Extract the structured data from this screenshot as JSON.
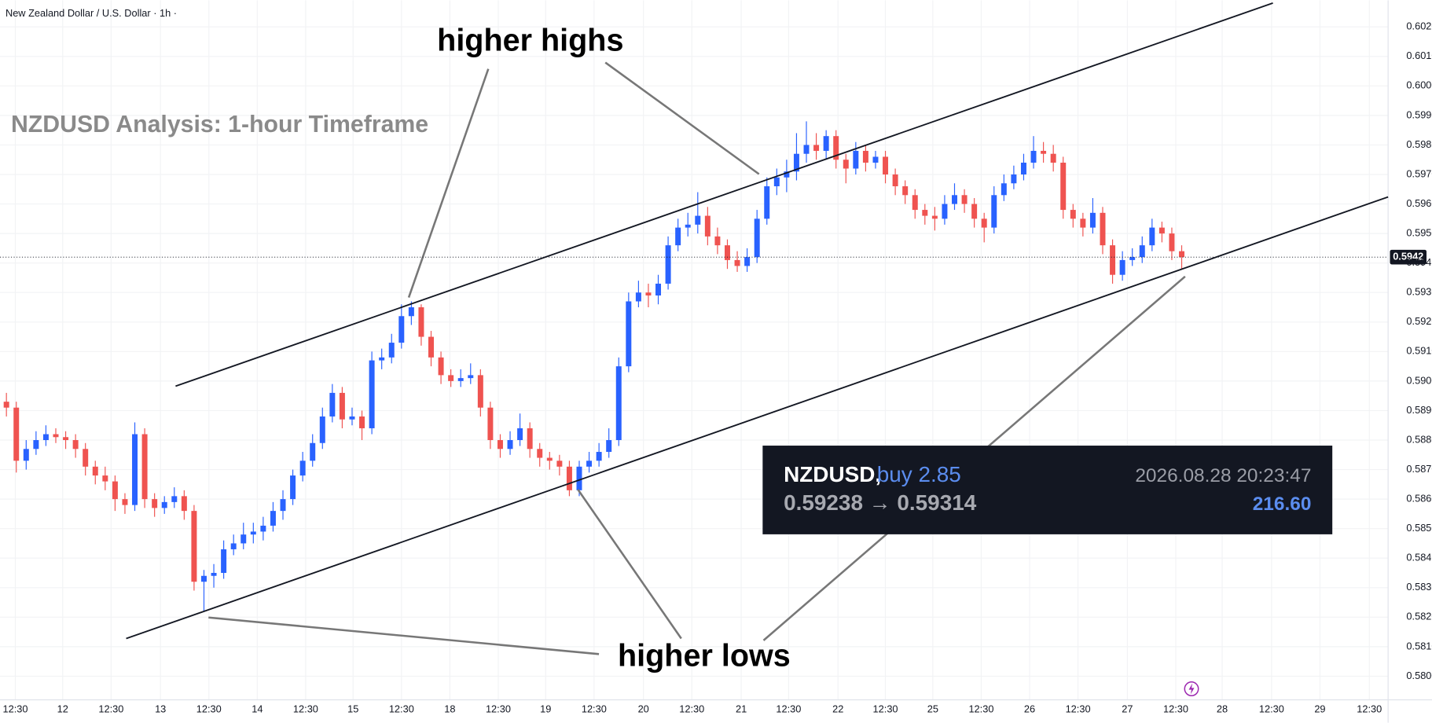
{
  "chart_data": {
    "type": "candlestick",
    "header": "New Zealand Dollar / U.S. Dollar · 1h ·",
    "title": "NZDUSD Analysis: 1-hour Timeframe",
    "annotations": {
      "highs": "higher highs",
      "lows": "higher lows"
    },
    "trade": {
      "symbol": "NZDUSD,",
      "side": "buy 2.85",
      "time": "2026.08.28 20:23:47",
      "prices": "0.59238 → 0.59314",
      "profit": "216.60"
    },
    "up_color": "#2962ff",
    "down_color": "#ef5350",
    "last_price": {
      "value": 0.5942,
      "label": "0.5942"
    },
    "grid": true,
    "xlim": [
      -0.65,
      139.9
    ],
    "ylim": [
      0.5792,
      0.6029
    ],
    "xticks": [
      {
        "value": 0.9,
        "label": "12:30"
      },
      {
        "value": 5.7,
        "label": "12"
      },
      {
        "value": 10.6,
        "label": "12:30"
      },
      {
        "value": 15.6,
        "label": "13"
      },
      {
        "value": 20.5,
        "label": "12:30"
      },
      {
        "value": 25.4,
        "label": "14"
      },
      {
        "value": 30.3,
        "label": "12:30"
      },
      {
        "value": 35.1,
        "label": "15"
      },
      {
        "value": 40,
        "label": "12:30"
      },
      {
        "value": 44.9,
        "label": "18"
      },
      {
        "value": 49.8,
        "label": "12:30"
      },
      {
        "value": 54.6,
        "label": "19"
      },
      {
        "value": 59.5,
        "label": "12:30"
      },
      {
        "value": 64.5,
        "label": "20"
      },
      {
        "value": 69.4,
        "label": "12:30"
      },
      {
        "value": 74.4,
        "label": "21"
      },
      {
        "value": 79.2,
        "label": "12:30"
      },
      {
        "value": 84.2,
        "label": "22"
      },
      {
        "value": 89,
        "label": "12:30"
      },
      {
        "value": 93.8,
        "label": "25"
      },
      {
        "value": 98.7,
        "label": "12:30"
      },
      {
        "value": 103.6,
        "label": "26"
      },
      {
        "value": 108.5,
        "label": "12:30"
      },
      {
        "value": 113.5,
        "label": "27"
      },
      {
        "value": 118.4,
        "label": "12:30"
      },
      {
        "value": 123.1,
        "label": "28"
      },
      {
        "value": 128.1,
        "label": "12:30"
      },
      {
        "value": 133,
        "label": "29"
      },
      {
        "value": 138,
        "label": "12:30"
      }
    ],
    "yticks": [
      {
        "value": 0.58,
        "label": "0.5800"
      },
      {
        "value": 0.581,
        "label": "0.5810"
      },
      {
        "value": 0.582,
        "label": "0.5820"
      },
      {
        "value": 0.583,
        "label": "0.5830"
      },
      {
        "value": 0.584,
        "label": "0.5840"
      },
      {
        "value": 0.585,
        "label": "0.5850"
      },
      {
        "value": 0.586,
        "label": "0.5860"
      },
      {
        "value": 0.587,
        "label": "0.5870"
      },
      {
        "value": 0.588,
        "label": "0.5880"
      },
      {
        "value": 0.589,
        "label": "0.5890"
      },
      {
        "value": 0.59,
        "label": "0.5900"
      },
      {
        "value": 0.591,
        "label": "0.5910"
      },
      {
        "value": 0.592,
        "label": "0.5920"
      },
      {
        "value": 0.593,
        "label": "0.5930"
      },
      {
        "value": 0.594,
        "label": "0.5940"
      },
      {
        "value": 0.595,
        "label": "0.5950"
      },
      {
        "value": 0.596,
        "label": "0.5960"
      },
      {
        "value": 0.597,
        "label": "0.5970"
      },
      {
        "value": 0.598,
        "label": "0.5980"
      },
      {
        "value": 0.599,
        "label": "0.5990"
      },
      {
        "value": 0.6,
        "label": "0.6000"
      },
      {
        "value": 0.601,
        "label": "0.6010"
      },
      {
        "value": 0.602,
        "label": "0.6020"
      }
    ],
    "candles": [
      [
        0.5893,
        0.5896,
        0.5888,
        0.5891
      ],
      [
        0.5891,
        0.5893,
        0.5869,
        0.5873
      ],
      [
        0.5873,
        0.588,
        0.587,
        0.5877
      ],
      [
        0.5877,
        0.5883,
        0.5875,
        0.588
      ],
      [
        0.588,
        0.5885,
        0.5878,
        0.5882
      ],
      [
        0.5882,
        0.5884,
        0.5879,
        0.5881
      ],
      [
        0.5881,
        0.5883,
        0.5877,
        0.588
      ],
      [
        0.588,
        0.5882,
        0.5874,
        0.5877
      ],
      [
        0.5877,
        0.5879,
        0.5868,
        0.5871
      ],
      [
        0.5871,
        0.5873,
        0.5865,
        0.5868
      ],
      [
        0.5868,
        0.5871,
        0.5863,
        0.5866
      ],
      [
        0.5866,
        0.5868,
        0.5856,
        0.586
      ],
      [
        0.586,
        0.5862,
        0.5855,
        0.5858
      ],
      [
        0.5858,
        0.5886,
        0.5856,
        0.5882
      ],
      [
        0.5882,
        0.5884,
        0.5857,
        0.586
      ],
      [
        0.586,
        0.5862,
        0.5854,
        0.5857
      ],
      [
        0.5857,
        0.5861,
        0.5855,
        0.5859
      ],
      [
        0.5859,
        0.5864,
        0.5857,
        0.5861
      ],
      [
        0.5861,
        0.5863,
        0.5853,
        0.5856
      ],
      [
        0.5856,
        0.5858,
        0.5829,
        0.5832
      ],
      [
        0.5832,
        0.5836,
        0.5822,
        0.5834
      ],
      [
        0.5834,
        0.5838,
        0.583,
        0.5835
      ],
      [
        0.5835,
        0.5846,
        0.5833,
        0.5843
      ],
      [
        0.5843,
        0.5848,
        0.5841,
        0.5845
      ],
      [
        0.5845,
        0.5852,
        0.5843,
        0.5848
      ],
      [
        0.5848,
        0.5852,
        0.5845,
        0.5849
      ],
      [
        0.5849,
        0.5854,
        0.5846,
        0.5851
      ],
      [
        0.5851,
        0.5859,
        0.5849,
        0.5856
      ],
      [
        0.5856,
        0.5863,
        0.5853,
        0.586
      ],
      [
        0.586,
        0.587,
        0.5858,
        0.5868
      ],
      [
        0.5868,
        0.5876,
        0.5866,
        0.5873
      ],
      [
        0.5873,
        0.5882,
        0.5871,
        0.5879
      ],
      [
        0.5879,
        0.5891,
        0.5877,
        0.5888
      ],
      [
        0.5888,
        0.5899,
        0.5886,
        0.5896
      ],
      [
        0.5896,
        0.5898,
        0.5884,
        0.5887
      ],
      [
        0.5887,
        0.5891,
        0.5885,
        0.5888
      ],
      [
        0.5888,
        0.589,
        0.588,
        0.5884
      ],
      [
        0.5884,
        0.591,
        0.5882,
        0.5907
      ],
      [
        0.5907,
        0.5911,
        0.5904,
        0.5908
      ],
      [
        0.5908,
        0.5916,
        0.5906,
        0.5913
      ],
      [
        0.5913,
        0.5926,
        0.5911,
        0.5922
      ],
      [
        0.5922,
        0.5927,
        0.5919,
        0.5925
      ],
      [
        0.5925,
        0.5926,
        0.5912,
        0.5915
      ],
      [
        0.5915,
        0.5917,
        0.5905,
        0.5908
      ],
      [
        0.5908,
        0.591,
        0.5899,
        0.5902
      ],
      [
        0.5902,
        0.5904,
        0.5898,
        0.59
      ],
      [
        0.59,
        0.5904,
        0.5898,
        0.5901
      ],
      [
        0.5901,
        0.5906,
        0.5899,
        0.5902
      ],
      [
        0.5902,
        0.5904,
        0.5888,
        0.5891
      ],
      [
        0.5891,
        0.5893,
        0.5877,
        0.588
      ],
      [
        0.588,
        0.5882,
        0.5874,
        0.5877
      ],
      [
        0.5877,
        0.5883,
        0.5875,
        0.588
      ],
      [
        0.588,
        0.5889,
        0.5878,
        0.5884
      ],
      [
        0.5884,
        0.5886,
        0.5874,
        0.5877
      ],
      [
        0.5877,
        0.5879,
        0.5871,
        0.5874
      ],
      [
        0.5874,
        0.5876,
        0.587,
        0.5873
      ],
      [
        0.5873,
        0.5875,
        0.5868,
        0.5871
      ],
      [
        0.5871,
        0.5873,
        0.5861,
        0.5863
      ],
      [
        0.5863,
        0.5873,
        0.5861,
        0.5871
      ],
      [
        0.5871,
        0.5876,
        0.5869,
        0.5873
      ],
      [
        0.5873,
        0.5879,
        0.5871,
        0.5876
      ],
      [
        0.5876,
        0.5884,
        0.5874,
        0.588
      ],
      [
        0.588,
        0.5908,
        0.5878,
        0.5905
      ],
      [
        0.5905,
        0.593,
        0.5903,
        0.5927
      ],
      [
        0.5927,
        0.5934,
        0.5925,
        0.593
      ],
      [
        0.593,
        0.5933,
        0.5925,
        0.5929
      ],
      [
        0.5929,
        0.5936,
        0.5926,
        0.5933
      ],
      [
        0.5933,
        0.5949,
        0.5931,
        0.5946
      ],
      [
        0.5946,
        0.5955,
        0.5944,
        0.5952
      ],
      [
        0.5952,
        0.5957,
        0.5949,
        0.5953
      ],
      [
        0.5953,
        0.5964,
        0.595,
        0.5956
      ],
      [
        0.5956,
        0.5959,
        0.5946,
        0.5949
      ],
      [
        0.5949,
        0.5952,
        0.5943,
        0.5946
      ],
      [
        0.5946,
        0.5948,
        0.5938,
        0.5941
      ],
      [
        0.5941,
        0.5944,
        0.5937,
        0.5939
      ],
      [
        0.5939,
        0.5945,
        0.5937,
        0.5942
      ],
      [
        0.5942,
        0.5958,
        0.594,
        0.5955
      ],
      [
        0.5955,
        0.5969,
        0.5953,
        0.5966
      ],
      [
        0.5966,
        0.5972,
        0.5963,
        0.5969
      ],
      [
        0.5969,
        0.5975,
        0.5964,
        0.5971
      ],
      [
        0.5971,
        0.5984,
        0.5968,
        0.5977
      ],
      [
        0.5977,
        0.5988,
        0.5974,
        0.598
      ],
      [
        0.598,
        0.5984,
        0.5975,
        0.5978
      ],
      [
        0.5978,
        0.5985,
        0.5975,
        0.5983
      ],
      [
        0.5983,
        0.5985,
        0.5972,
        0.5975
      ],
      [
        0.5975,
        0.5977,
        0.5967,
        0.5972
      ],
      [
        0.5972,
        0.5981,
        0.597,
        0.5978
      ],
      [
        0.5978,
        0.598,
        0.5971,
        0.5974
      ],
      [
        0.5974,
        0.5978,
        0.5972,
        0.5976
      ],
      [
        0.5976,
        0.5978,
        0.5967,
        0.597
      ],
      [
        0.597,
        0.5972,
        0.5963,
        0.5966
      ],
      [
        0.5966,
        0.5968,
        0.596,
        0.5963
      ],
      [
        0.5963,
        0.5965,
        0.5955,
        0.5958
      ],
      [
        0.5958,
        0.596,
        0.5953,
        0.5956
      ],
      [
        0.5956,
        0.5959,
        0.5951,
        0.5955
      ],
      [
        0.5955,
        0.5963,
        0.5953,
        0.596
      ],
      [
        0.596,
        0.5967,
        0.5958,
        0.5963
      ],
      [
        0.5963,
        0.5965,
        0.5957,
        0.596
      ],
      [
        0.596,
        0.5962,
        0.5952,
        0.5955
      ],
      [
        0.5955,
        0.5957,
        0.5947,
        0.5952
      ],
      [
        0.5952,
        0.5966,
        0.595,
        0.5963
      ],
      [
        0.5963,
        0.597,
        0.5961,
        0.5967
      ],
      [
        0.5967,
        0.5973,
        0.5965,
        0.597
      ],
      [
        0.597,
        0.5977,
        0.5968,
        0.5974
      ],
      [
        0.5974,
        0.5983,
        0.5972,
        0.5978
      ],
      [
        0.5978,
        0.5981,
        0.5974,
        0.5977
      ],
      [
        0.5977,
        0.598,
        0.5971,
        0.5974
      ],
      [
        0.5974,
        0.5976,
        0.5955,
        0.5958
      ],
      [
        0.5958,
        0.596,
        0.5952,
        0.5955
      ],
      [
        0.5955,
        0.5957,
        0.5949,
        0.5952
      ],
      [
        0.5952,
        0.5962,
        0.595,
        0.5957
      ],
      [
        0.5957,
        0.5959,
        0.5943,
        0.5946
      ],
      [
        0.5946,
        0.5948,
        0.5933,
        0.5936
      ],
      [
        0.5936,
        0.5944,
        0.5934,
        0.5941
      ],
      [
        0.5941,
        0.5945,
        0.5939,
        0.5942
      ],
      [
        0.5942,
        0.5949,
        0.594,
        0.5946
      ],
      [
        0.5946,
        0.5955,
        0.5944,
        0.5952
      ],
      [
        0.5952,
        0.5954,
        0.5947,
        0.595
      ],
      [
        0.595,
        0.5952,
        0.5941,
        0.5944
      ],
      [
        0.5944,
        0.5946,
        0.5938,
        0.5942
      ]
    ]
  }
}
